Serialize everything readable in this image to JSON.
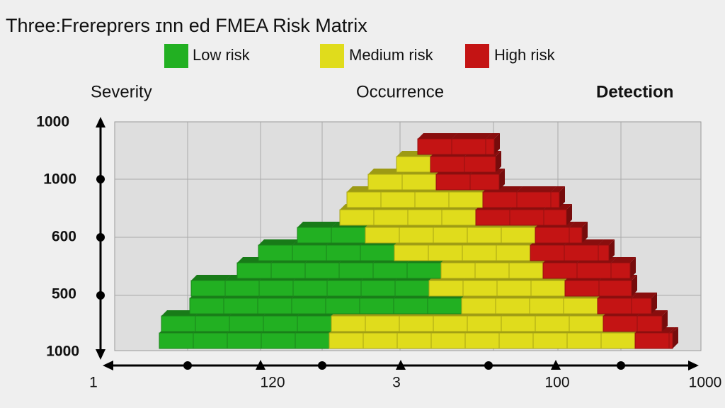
{
  "title": "Three:Frereprers ɪnn ed FMEA Risk Matrix",
  "legend": [
    {
      "label": "Low risk",
      "color": "#22b022"
    },
    {
      "label": "Medium risk",
      "color": "#e0dc1c"
    },
    {
      "label": "High risk",
      "color": "#c41414"
    }
  ],
  "headings": [
    "Severity",
    "Occurrence",
    "Detection"
  ],
  "y_labels": [
    "1000",
    "1000",
    "600",
    "500",
    "1000"
  ],
  "x_labels": [
    "1",
    "120",
    "3",
    "100",
    "1000"
  ]
}
